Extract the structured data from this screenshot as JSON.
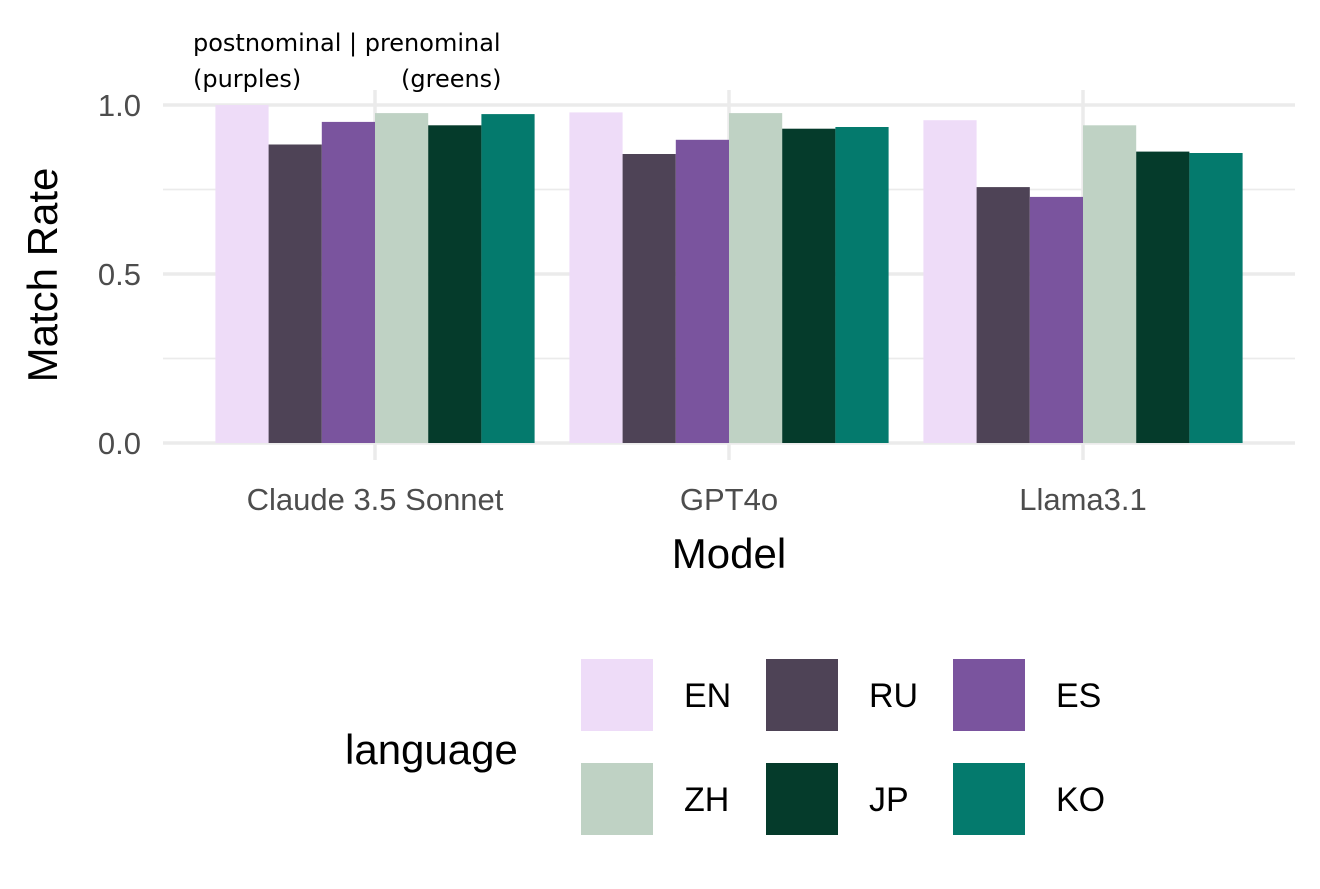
{
  "chart_data": {
    "type": "bar",
    "xlabel": "Model",
    "ylabel": "Match Rate",
    "categories": [
      "Claude 3.5 Sonnet",
      "GPT4o",
      "Llama3.1"
    ],
    "ylim": [
      0,
      1
    ],
    "yticks": [
      "0.0",
      "0.5",
      "1.0"
    ],
    "grid": true,
    "legend_position": "bottom",
    "legend_title": "language",
    "annotation": [
      "postnominal | prenominal",
      "(purples)",
      "(greens)"
    ],
    "series": [
      {
        "name": "EN",
        "color": "#eedcf8",
        "values": [
          1.0,
          0.978,
          0.955
        ]
      },
      {
        "name": "RU",
        "color": "#4e4356",
        "values": [
          0.883,
          0.855,
          0.757
        ]
      },
      {
        "name": "ES",
        "color": "#7a549e",
        "values": [
          0.95,
          0.897,
          0.728
        ]
      },
      {
        "name": "ZH",
        "color": "#bfd2c4",
        "values": [
          0.976,
          0.976,
          0.94
        ]
      },
      {
        "name": "JP",
        "color": "#053b2b",
        "values": [
          0.94,
          0.93,
          0.862
        ]
      },
      {
        "name": "KO",
        "color": "#047a6d",
        "values": [
          0.973,
          0.935,
          0.858
        ]
      }
    ]
  }
}
